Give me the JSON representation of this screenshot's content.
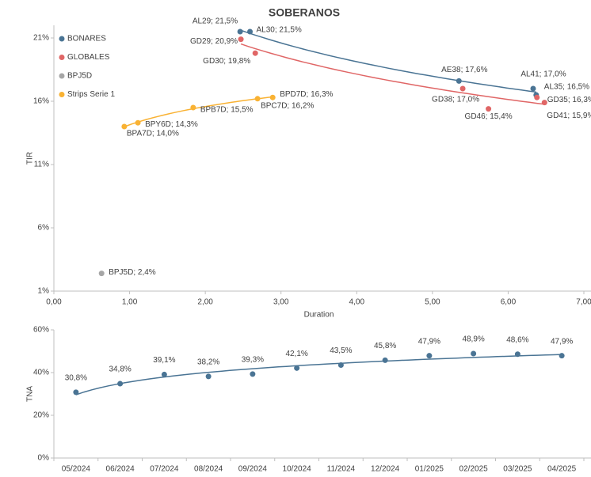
{
  "chart_data": [
    {
      "type": "scatter",
      "title": "SOBERANOS",
      "x_label": "Duration",
      "y_label": "TIR",
      "xlim": [
        0,
        7
      ],
      "xticks": [
        {
          "value": 0,
          "label": "0,00"
        },
        {
          "value": 1,
          "label": "1,00"
        },
        {
          "value": 2,
          "label": "2,00"
        },
        {
          "value": 3,
          "label": "3,00"
        },
        {
          "value": 4,
          "label": "4,00"
        },
        {
          "value": 5,
          "label": "5,00"
        },
        {
          "value": 6,
          "label": "6,00"
        },
        {
          "value": 7,
          "label": "7,00"
        }
      ],
      "ylim": [
        1,
        22
      ],
      "yticks": [
        {
          "value": 1,
          "label": "1%"
        },
        {
          "value": 6,
          "label": "6%"
        },
        {
          "value": 11,
          "label": "11%"
        },
        {
          "value": 16,
          "label": "16%"
        },
        {
          "value": 21,
          "label": "21%"
        }
      ],
      "legend": "top-left",
      "trendline": true,
      "series": [
        {
          "name": "BONARES",
          "color": "#4a7494",
          "x": [
            2.46,
            2.59,
            5.35,
            6.33,
            6.37
          ],
          "values": [
            21.5,
            21.5,
            17.6,
            17.0,
            16.5
          ],
          "value_labels": [
            "AL29; 21,5%",
            "AL30; 21,5%",
            "AE38; 17,6%",
            "AL41; 17,0%",
            "AL35; 16,5%"
          ]
        },
        {
          "name": "GLOBALES",
          "color": "#e06666",
          "x": [
            2.47,
            2.66,
            5.4,
            5.74,
            6.38,
            6.48
          ],
          "values": [
            20.9,
            19.8,
            17.0,
            15.4,
            16.3,
            15.9
          ],
          "value_labels": [
            "GD29; 20,9%",
            "GD30; 19,8%",
            "GD38; 17,0%",
            "GD46; 15,4%",
            "GD35; 16,3%",
            "GD41; 15,9%"
          ]
        },
        {
          "name": "BPJ5D",
          "color": "#a6a6a6",
          "x": [
            0.63
          ],
          "values": [
            2.4
          ],
          "value_labels": [
            "BPJ5D; 2,4%"
          ]
        },
        {
          "name": "Strips Serie 1",
          "color": "#f9b233",
          "x": [
            0.93,
            1.11,
            1.84,
            2.69,
            2.89
          ],
          "values": [
            14.0,
            14.3,
            15.5,
            16.2,
            16.3
          ],
          "value_labels": [
            "BPA7D; 14,0%",
            "BPY6D; 14,3%",
            "BPB7D; 15,5%",
            "BPC7D; 16,2%",
            "BPD7D; 16,3%"
          ]
        }
      ]
    },
    {
      "type": "scatter",
      "y_label": "TNA",
      "color": "#4a7494",
      "trendline": true,
      "categories": [
        "05/2024",
        "06/2024",
        "07/2024",
        "08/2024",
        "09/2024",
        "10/2024",
        "11/2024",
        "12/2024",
        "01/2025",
        "02/2025",
        "03/2025",
        "04/2025"
      ],
      "values": [
        30.8,
        34.8,
        39.1,
        38.2,
        39.3,
        42.1,
        43.5,
        45.8,
        47.9,
        48.9,
        48.6,
        47.9
      ],
      "value_labels": [
        "30,8%",
        "34,8%",
        "39,1%",
        "38,2%",
        "39,3%",
        "42,1%",
        "43,5%",
        "45,8%",
        "47,9%",
        "48,9%",
        "48,6%",
        "47,9%"
      ],
      "ylim": [
        0,
        60
      ],
      "yticks": [
        {
          "value": 0,
          "label": "0%"
        },
        {
          "value": 20,
          "label": "20%"
        },
        {
          "value": 40,
          "label": "40%"
        },
        {
          "value": 60,
          "label": "60%"
        }
      ]
    }
  ]
}
